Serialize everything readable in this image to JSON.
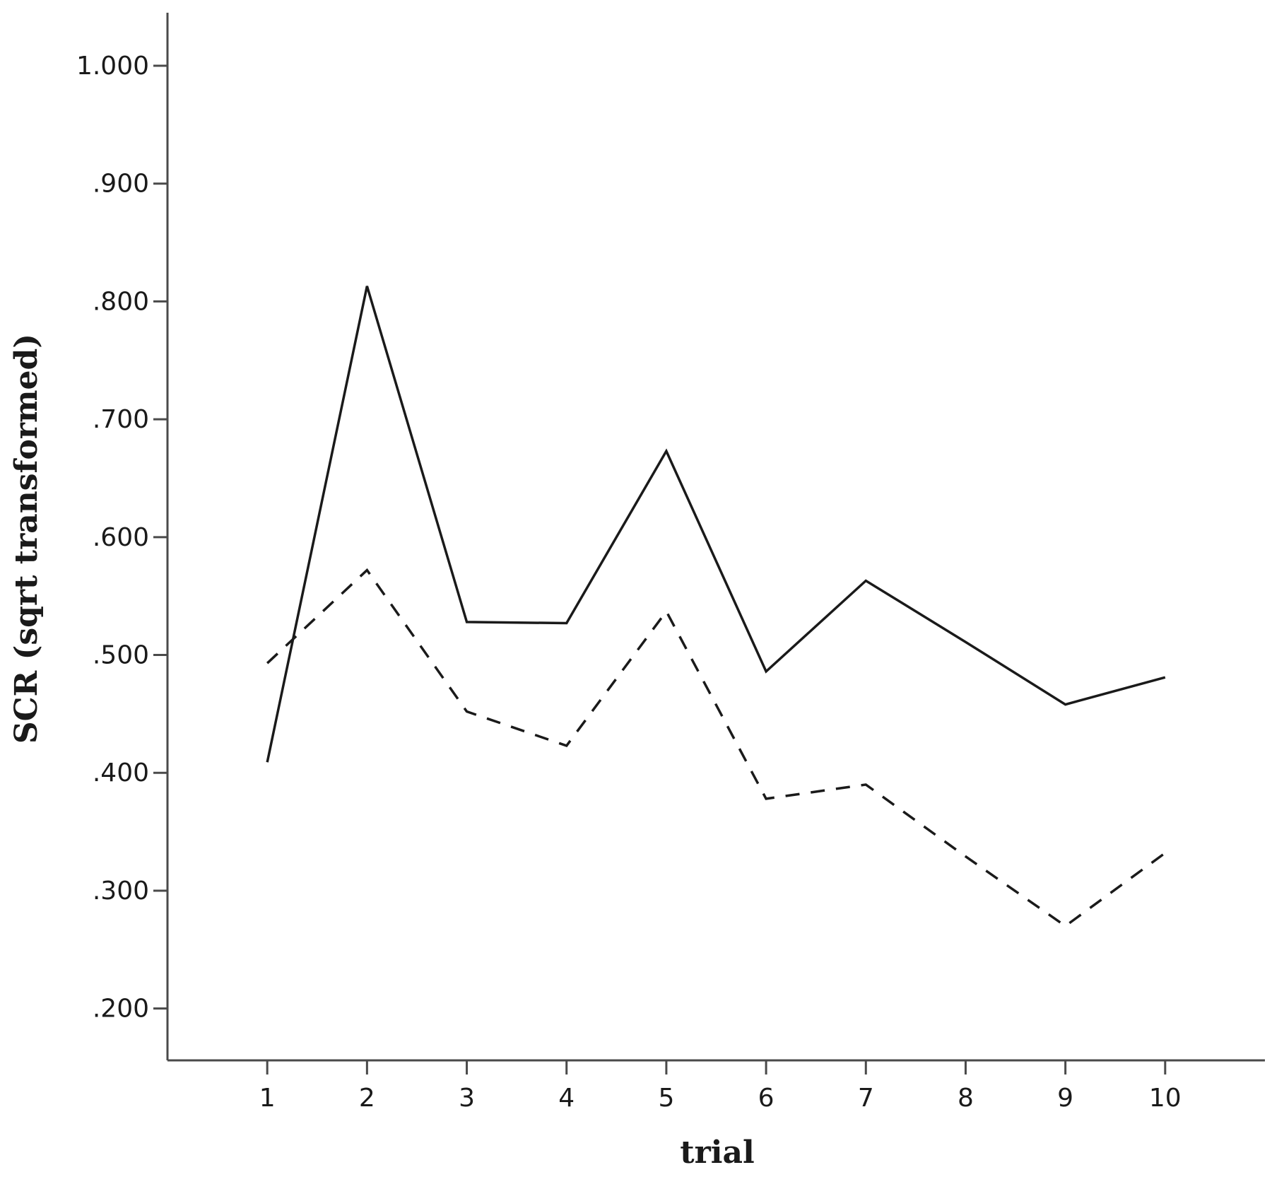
{
  "chart_data": {
    "type": "line",
    "xlabel": "trial",
    "ylabel": "SCR (sqrt transformed)",
    "x": [
      1,
      2,
      3,
      4,
      5,
      6,
      7,
      8,
      9,
      10
    ],
    "x_tick_labels": [
      "1",
      "2",
      "3",
      "4",
      "5",
      "6",
      "7",
      "8",
      "9",
      "10"
    ],
    "y_tick_values": [
      0.2,
      0.3,
      0.4,
      0.5,
      0.6,
      0.7,
      0.8,
      0.9,
      1.0
    ],
    "y_tick_labels": [
      ".200",
      ".300",
      ".400",
      ".500",
      ".600",
      ".700",
      ".800",
      ".900",
      "1.000"
    ],
    "ylim": [
      0.156,
      1.045
    ],
    "xlim": [
      0,
      11
    ],
    "grid": false,
    "legend": "none",
    "series": [
      {
        "style": "solid",
        "color": "#1a1a1a",
        "values": [
          0.409,
          0.813,
          0.528,
          0.527,
          0.673,
          0.486,
          0.563,
          0.511,
          0.458,
          0.481
        ]
      },
      {
        "style": "dashed",
        "color": "#1a1a1a",
        "values": [
          0.493,
          0.572,
          0.452,
          0.423,
          0.537,
          0.378,
          0.39,
          0.329,
          0.27,
          0.332
        ]
      }
    ]
  }
}
